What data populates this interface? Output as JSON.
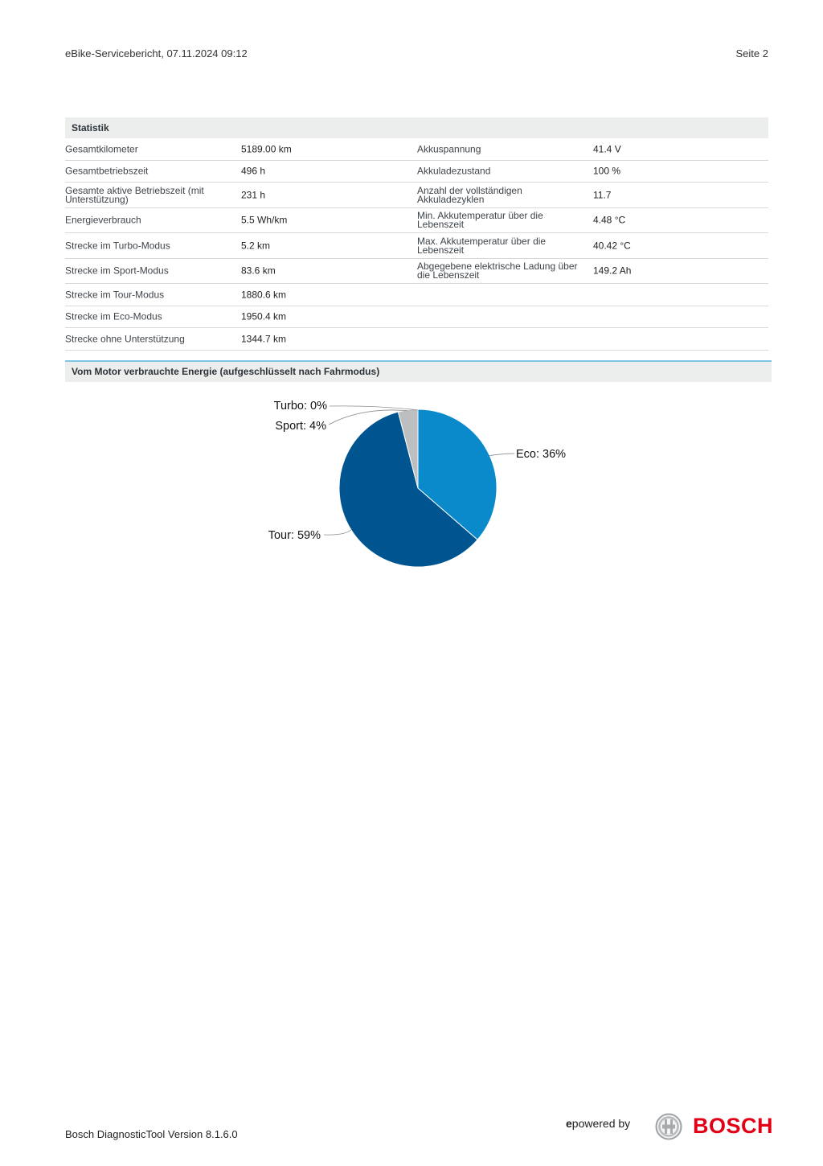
{
  "header": {
    "title": "eBike-Servicebericht, 07.11.2024 09:12",
    "page": "Seite 2"
  },
  "statistik": {
    "heading": "Statistik",
    "rows": [
      {
        "l_label": "Gesamtkilometer",
        "l_value": "5189.00 km",
        "r_label": "Akkuspannung",
        "r_value": "41.4 V"
      },
      {
        "l_label": "Gesamtbetriebszeit",
        "l_value": "496 h",
        "r_label": "Akkuladezustand",
        "r_value": "100 %"
      },
      {
        "l_label": "Gesamte aktive Betriebszeit (mit Unterstützung)",
        "l_value": "231 h",
        "r_label": "Anzahl der vollständigen Akkuladezyklen",
        "r_value": "11.7"
      },
      {
        "l_label": "Energieverbrauch",
        "l_value": "5.5 Wh/km",
        "r_label": "Min. Akkutemperatur über die Lebenszeit",
        "r_value": "4.48 °C"
      },
      {
        "l_label": "Strecke im Turbo-Modus",
        "l_value": "5.2 km",
        "r_label": "Max. Akkutemperatur über die Lebenszeit",
        "r_value": "40.42 °C"
      },
      {
        "l_label": "Strecke im Sport-Modus",
        "l_value": "83.6 km",
        "r_label": "Abgegebene elektrische Ladung über die Lebenszeit",
        "r_value": "149.2 Ah"
      },
      {
        "l_label": "Strecke im Tour-Modus",
        "l_value": "1880.6 km",
        "r_label": "",
        "r_value": ""
      },
      {
        "l_label": "Strecke im Eco-Modus",
        "l_value": "1950.4 km",
        "r_label": "",
        "r_value": ""
      },
      {
        "l_label": "Strecke ohne Unterstützung",
        "l_value": "1344.7 km",
        "r_label": "",
        "r_value": ""
      }
    ]
  },
  "energy_section": {
    "heading": "Vom Motor verbrauchte Energie (aufgeschlüsselt nach Fahrmodus)"
  },
  "chart_data": {
    "type": "pie",
    "slices": [
      {
        "label": "Eco",
        "value": 36,
        "display": "Eco: 36%",
        "color": "#0a8acb"
      },
      {
        "label": "Tour",
        "value": 59,
        "display": "Tour: 59%",
        "color": "#005591"
      },
      {
        "label": "Sport",
        "value": 4,
        "display": "Sport: 4%",
        "color": "#bcbec0"
      },
      {
        "label": "Turbo",
        "value": 0,
        "display": "Turbo: 0%",
        "color": "#9a9c9e"
      }
    ]
  },
  "footer": {
    "version": "Bosch DiagnosticTool Version 8.1.6.0",
    "epowered_e": "e",
    "epowered_rest": "powered by",
    "brand": "BOSCH"
  },
  "colors": {
    "section_bg": "#ebeeec",
    "accent_line": "#7fc7e6",
    "bosch_red": "#e20015"
  }
}
